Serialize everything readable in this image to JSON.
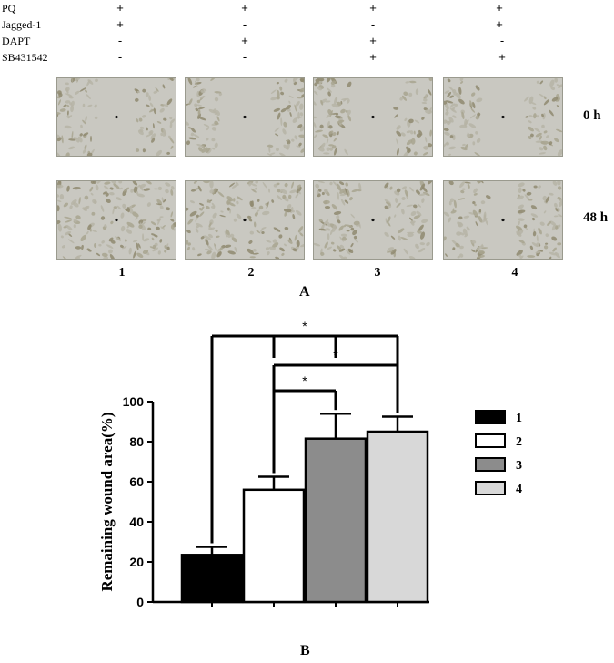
{
  "treatments": [
    {
      "label": "PQ",
      "signs": [
        "+",
        "+",
        "+",
        "+"
      ]
    },
    {
      "label": "Jagged-1",
      "signs": [
        "+",
        "-",
        "-",
        "+"
      ]
    },
    {
      "label": "DAPT",
      "signs": [
        "-",
        "+",
        "+",
        "-"
      ]
    },
    {
      "label": "SB431542",
      "signs": [
        "-",
        "-",
        "+",
        "+"
      ]
    }
  ],
  "micrograph_panel": {
    "time_labels": [
      "0 h",
      "48 h"
    ],
    "lane_numbers": [
      "1",
      "2",
      "3",
      "4"
    ],
    "panel_label": "A"
  },
  "chart_data": {
    "type": "bar",
    "categories": [
      "1",
      "2",
      "3",
      "4"
    ],
    "values": [
      23.5,
      56,
      81.5,
      85
    ],
    "errors": [
      4,
      6.5,
      12.5,
      7.5
    ],
    "colors": [
      "#000000",
      "#ffffff",
      "#8c8c8c",
      "#d8d8d8"
    ],
    "ylabel": "Remaining wound area(%)",
    "ylim": [
      0,
      100
    ],
    "yticks": [
      0,
      20,
      40,
      60,
      80,
      100
    ],
    "legend": [
      "1",
      "2",
      "3",
      "4"
    ],
    "legend_position": "right",
    "significance": [
      {
        "from": "1",
        "to": [
          "2",
          "3",
          "4"
        ],
        "label": "*"
      },
      {
        "from": "2",
        "to": [
          "4"
        ],
        "label": "*"
      },
      {
        "from": "2",
        "to": [
          "3"
        ],
        "label": "*"
      }
    ],
    "panel_label": "B"
  }
}
